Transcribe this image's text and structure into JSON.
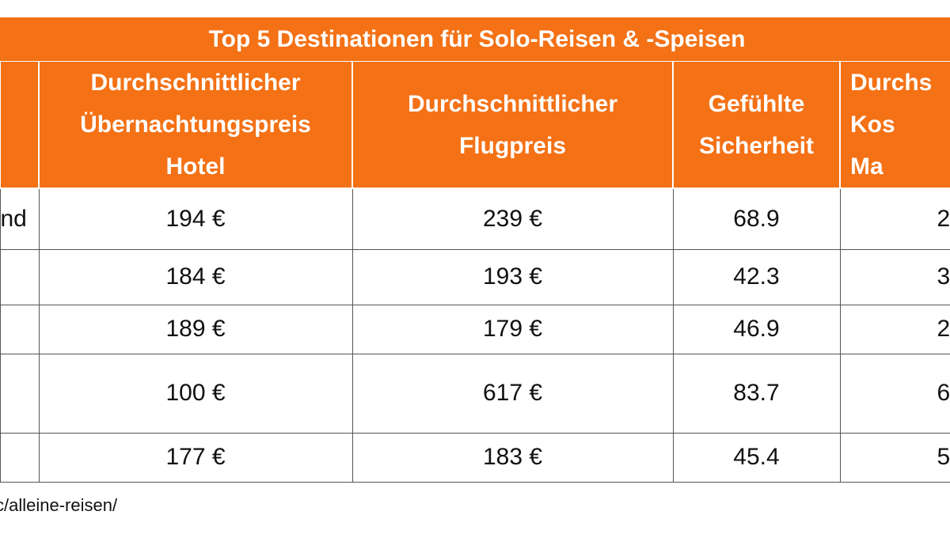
{
  "table": {
    "title": "Top 5 Destinationen für Solo-Reisen & -Speisen",
    "headers": [
      "",
      "Durchschnittlicher\nÜbernachtungspreis\nHotel",
      "Durchschnittlicher\nFlugpreis",
      "Gefühlte\nSicherheit",
      "Durchs\nKos\nMa"
    ],
    "rows": [
      [
        "nd",
        "194 €",
        "239 €",
        "68.9",
        "2"
      ],
      [
        "",
        "184 €",
        "193 €",
        "42.3",
        "3"
      ],
      [
        "",
        "189 €",
        "179 €",
        "46.9",
        "2"
      ],
      [
        "",
        "100 €",
        "617 €",
        "83.7",
        "6"
      ],
      [
        "",
        "177 €",
        "183 €",
        "45.4",
        "5"
      ]
    ]
  },
  "footnote": "c/alleine-reisen/"
}
